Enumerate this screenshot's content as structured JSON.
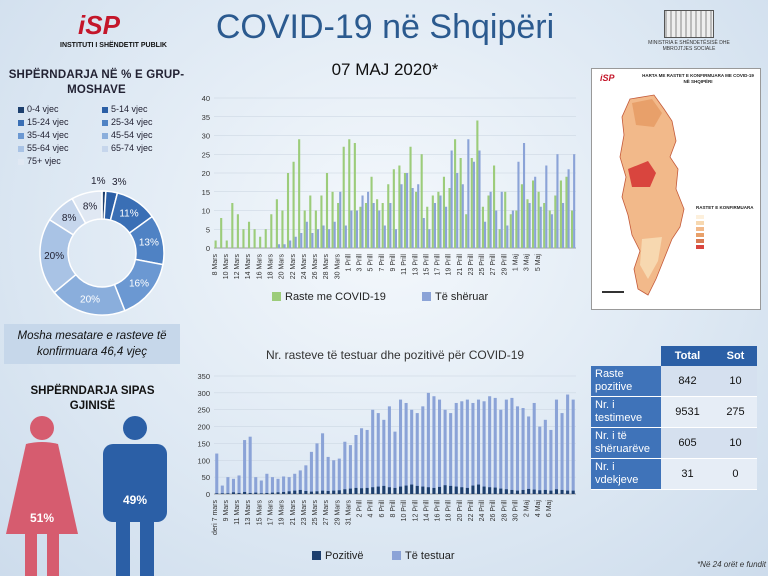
{
  "header": {
    "left_logo_text": "INSTITUTI I SHËNDETIT PUBLIK",
    "left_logo_mark": "iSP",
    "title": "COVID-19 në Shqipëri",
    "date": "07 MAJ 2020*",
    "right_logo_text": "MINISTRIA E SHËNDETËSISË DHE MBROJTJES SOCIALE"
  },
  "age": {
    "title": "SHPËRNDARJA NË % E GRUP-MOSHAVE",
    "mean_text": "Mosha mesatare e rasteve të konfirmuara 46,4 vjeç"
  },
  "gender": {
    "title": "SHPËRNDARJA SIPAS GJINISË",
    "female_label": "51%",
    "male_label": "49%",
    "female_color": "#d65c6f",
    "male_color": "#2b5fa6"
  },
  "map": {
    "title": "HARTA ME RASTET E KONFIRMUARA ME COVID-19 NË SHQIPËRI",
    "legend_title": "RASTET E KONFIRMUARA"
  },
  "table": {
    "headers": [
      "",
      "Total",
      "Sot"
    ],
    "rows": [
      {
        "label": "Raste pozitive",
        "total": "842",
        "today": "10"
      },
      {
        "label": "Nr. i testimeve",
        "total": "9531",
        "today": "275"
      },
      {
        "label": "Nr. i të shëruarëve",
        "total": "605",
        "today": "10"
      },
      {
        "label": "Nr. i vdekjeve",
        "total": "31",
        "today": "0"
      }
    ]
  },
  "footnote": "*Në 24 orët e fundit",
  "chart_data": [
    {
      "type": "pie",
      "title": "SHPËRNDARJA NË % E GRUP-MOSHAVE",
      "categories": [
        "0-4 vjec",
        "5-14 vjec",
        "15-24 vjec",
        "25-34 vjec",
        "35-44 vjec",
        "45-54 vjec",
        "55-64 vjec",
        "65-74 vjec",
        "75+ vjec"
      ],
      "values": [
        1,
        3,
        11,
        13,
        16,
        20,
        20,
        8,
        8
      ],
      "labels": [
        "1%",
        "3%",
        "11%",
        "13%",
        "16%",
        "20%",
        "20%",
        "8%",
        "8%"
      ],
      "colors": [
        "#1d3f6e",
        "#2b5fa6",
        "#3a6fb5",
        "#4f82c4",
        "#6b98d2",
        "#8aaedc",
        "#a9c3e5",
        "#c6d6ec",
        "#e0e8f3"
      ],
      "legend_position": "top"
    },
    {
      "type": "bar",
      "title": "",
      "series": [
        {
          "name": "Raste me COVID-19",
          "color": "#9ccc7a",
          "values": [
            2,
            8,
            2,
            12,
            9,
            5,
            7,
            5,
            3,
            5,
            9,
            13,
            10,
            20,
            23,
            29,
            10,
            14,
            10,
            14,
            20,
            15,
            12,
            27,
            29,
            28,
            11,
            12,
            19,
            13,
            12,
            17,
            21,
            22,
            20,
            27,
            15,
            25,
            11,
            14,
            15,
            19,
            16,
            29,
            24,
            9,
            24,
            34,
            11,
            14,
            22,
            5,
            15,
            9,
            10,
            17,
            13,
            18,
            15,
            12,
            10,
            14,
            18,
            19,
            10
          ]
        },
        {
          "name": "Të shëruar",
          "color": "#8ba3d7",
          "values": [
            0,
            0,
            0,
            0,
            0,
            0,
            0,
            0,
            0,
            0,
            0,
            1,
            1,
            2,
            3,
            4,
            7,
            4,
            5,
            6,
            5,
            7,
            15,
            6,
            10,
            10,
            14,
            15,
            12,
            10,
            6,
            12,
            5,
            17,
            20,
            16,
            17,
            8,
            5,
            12,
            14,
            11,
            26,
            20,
            17,
            29,
            23,
            26,
            7,
            15,
            10,
            15,
            6,
            10,
            23,
            28,
            12,
            19,
            11,
            22,
            9,
            25,
            12,
            21,
            25
          ]
        }
      ],
      "x_tick_labels": [
        "8 Mars",
        "10 Mars",
        "12 Mars",
        "14 Mars",
        "16 Mars",
        "18 Mars",
        "20 Mars",
        "22 Mars",
        "24 Mars",
        "26 Mars",
        "28 Mars",
        "30 Mars",
        "1 Prill",
        "3 Prill",
        "5 Prill",
        "7 Prill",
        "9 Prill",
        "11 Prill",
        "13 Prill",
        "15 Prill",
        "17 Prill",
        "19 Prill",
        "21 Prill",
        "23 Prill",
        "25 Prill",
        "27 Prill",
        "29 Prill",
        "1 Maj",
        "3 Maj",
        "5 Maj"
      ],
      "ylim": [
        0,
        40
      ],
      "yticks": [
        0,
        5,
        10,
        15,
        20,
        25,
        30,
        35,
        40
      ],
      "legend_position": "bottom"
    },
    {
      "type": "bar",
      "title": "Nr. rasteve të testuar dhe pozitivë për COVID-19",
      "series": [
        {
          "name": "Pozitivë",
          "color": "#1d3f6e",
          "values": [
            2,
            2,
            2,
            5,
            3,
            6,
            3,
            4,
            2,
            3,
            4,
            5,
            6,
            8,
            10,
            12,
            9,
            7,
            8,
            10,
            9,
            10,
            11,
            14,
            16,
            18,
            17,
            18,
            20,
            22,
            24,
            20,
            18,
            22,
            25,
            28,
            24,
            22,
            20,
            18,
            21,
            26,
            24,
            22,
            20,
            18,
            25,
            28,
            22,
            20,
            19,
            16,
            14,
            12,
            10,
            12,
            15,
            13,
            11,
            12,
            10,
            14,
            12,
            10,
            10
          ]
        },
        {
          "name": "Të testuar",
          "color": "#8ba3d7",
          "values": [
            120,
            25,
            50,
            45,
            55,
            160,
            170,
            50,
            40,
            60,
            50,
            45,
            52,
            50,
            60,
            70,
            85,
            125,
            150,
            180,
            110,
            100,
            105,
            155,
            145,
            175,
            195,
            190,
            250,
            240,
            220,
            260,
            185,
            280,
            270,
            250,
            240,
            260,
            300,
            290,
            280,
            250,
            240,
            270,
            275,
            280,
            270,
            280,
            275,
            290,
            285,
            250,
            280,
            285,
            260,
            255,
            230,
            270,
            200,
            220,
            190,
            280,
            240,
            295,
            280
          ]
        }
      ],
      "x_tick_labels": [
        "deri 7 mars",
        "9 Mars",
        "11 Mars",
        "13 Mars",
        "15 Mars",
        "17 Mars",
        "19 Mars",
        "21 Mars",
        "23 Mars",
        "25 Mars",
        "27 Mars",
        "29 Mars",
        "31 Mars",
        "2 Prill",
        "4 Prill",
        "6 Prill",
        "8 Prill",
        "10 Prill",
        "12 Prill",
        "14 Prill",
        "16 Prill",
        "18 Prill",
        "20 Prill",
        "22 Prill",
        "24 Prill",
        "26 Prill",
        "28 Prill",
        "30 Prill",
        "2 Maj",
        "4 Maj",
        "6 Maj"
      ],
      "ylim": [
        0,
        350
      ],
      "yticks": [
        0,
        50,
        100,
        150,
        200,
        250,
        300,
        350
      ],
      "legend_position": "bottom"
    }
  ]
}
